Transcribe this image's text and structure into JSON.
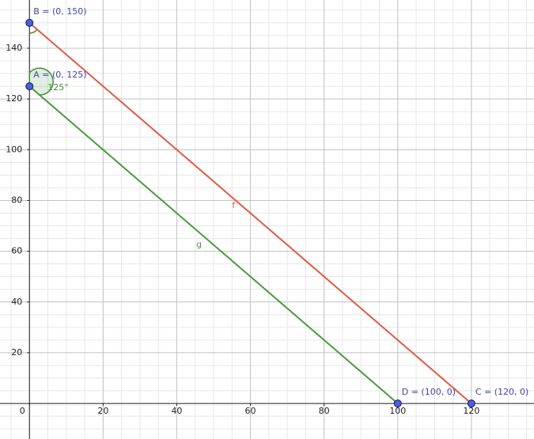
{
  "chart_data": {
    "type": "geometry",
    "xlim": [
      -8,
      137
    ],
    "ylim": [
      -14,
      159
    ],
    "xticks": [
      0,
      20,
      40,
      60,
      80,
      100,
      120
    ],
    "yticks": [
      20,
      40,
      60,
      80,
      100,
      120,
      140
    ],
    "grid": true,
    "points": [
      {
        "label": "A = (0, 125)",
        "x": 0,
        "y": 125
      },
      {
        "label": "B = (0, 150)",
        "x": 0,
        "y": 150
      },
      {
        "label": "C = (120, 0)",
        "x": 120,
        "y": 0
      },
      {
        "label": "D = (100, 0)",
        "x": 100,
        "y": 0
      }
    ],
    "point_color": "#4d5de0",
    "segments": [
      {
        "name": "f",
        "color": "#e05a48",
        "x": [
          0,
          120
        ],
        "y": [
          150,
          0
        ]
      },
      {
        "name": "g",
        "color": "#4a9a3e",
        "x": [
          0,
          100
        ],
        "y": [
          125,
          0
        ]
      }
    ],
    "angle": {
      "label": "125°",
      "value": 125,
      "color": "#3f8f34"
    }
  }
}
